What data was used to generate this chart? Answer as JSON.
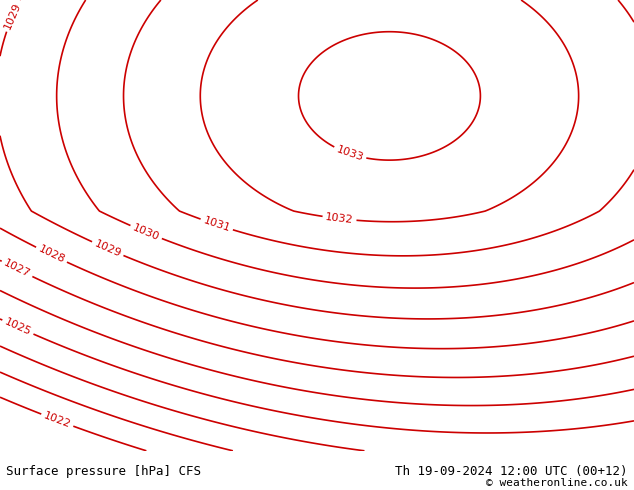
{
  "title_left": "Surface pressure [hPa] CFS",
  "title_right": "Th 19-09-2024 12:00 UTC (00+12)",
  "copyright": "© weatheronline.co.uk",
  "bg_color": "#c8eaaa",
  "land_color": "#c8eaaa",
  "sea_color": "#d8d8d8",
  "contour_color": "#cc0000",
  "border_color": "#a0a0b8",
  "contour_levels": [
    1022,
    1023,
    1024,
    1025,
    1026,
    1027,
    1028,
    1029,
    1030,
    1031,
    1032,
    1033
  ],
  "label_levels": [
    1022,
    1025,
    1027,
    1028,
    1029,
    1030,
    1031,
    1032,
    1033
  ],
  "figsize": [
    6.34,
    4.9
  ],
  "dpi": 100
}
